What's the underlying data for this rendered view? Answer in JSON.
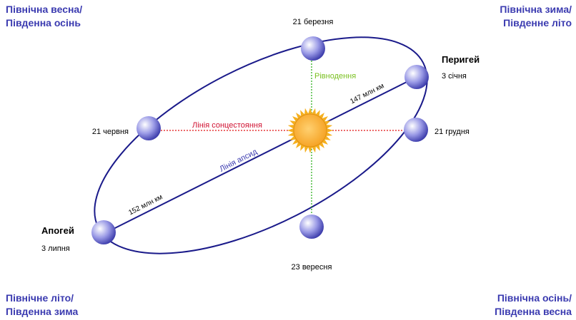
{
  "corners": {
    "top_left": [
      "Північна весна/",
      "Південна осінь"
    ],
    "top_right": [
      "Північна зима/",
      "Південне літо"
    ],
    "bottom_left": [
      "Північне літо/",
      "Південна зима"
    ],
    "bottom_right": [
      "Північна осінь/",
      "Південна весна"
    ]
  },
  "points": {
    "march": "21 березня",
    "june": "21 червня",
    "december": "21 грудня",
    "september": "23 вересня",
    "perihelion": {
      "name": "Перигей",
      "date": "3 січня"
    },
    "aphelion": {
      "name": "Апогей",
      "date": "3 липня"
    }
  },
  "lines": {
    "equinox": "Рівнодення",
    "solstice": "Лінія сонцестояння",
    "apsides": "Лінія апсид",
    "perihelion_distance": "147 млн км",
    "aphelion_distance": "152 млн км"
  }
}
